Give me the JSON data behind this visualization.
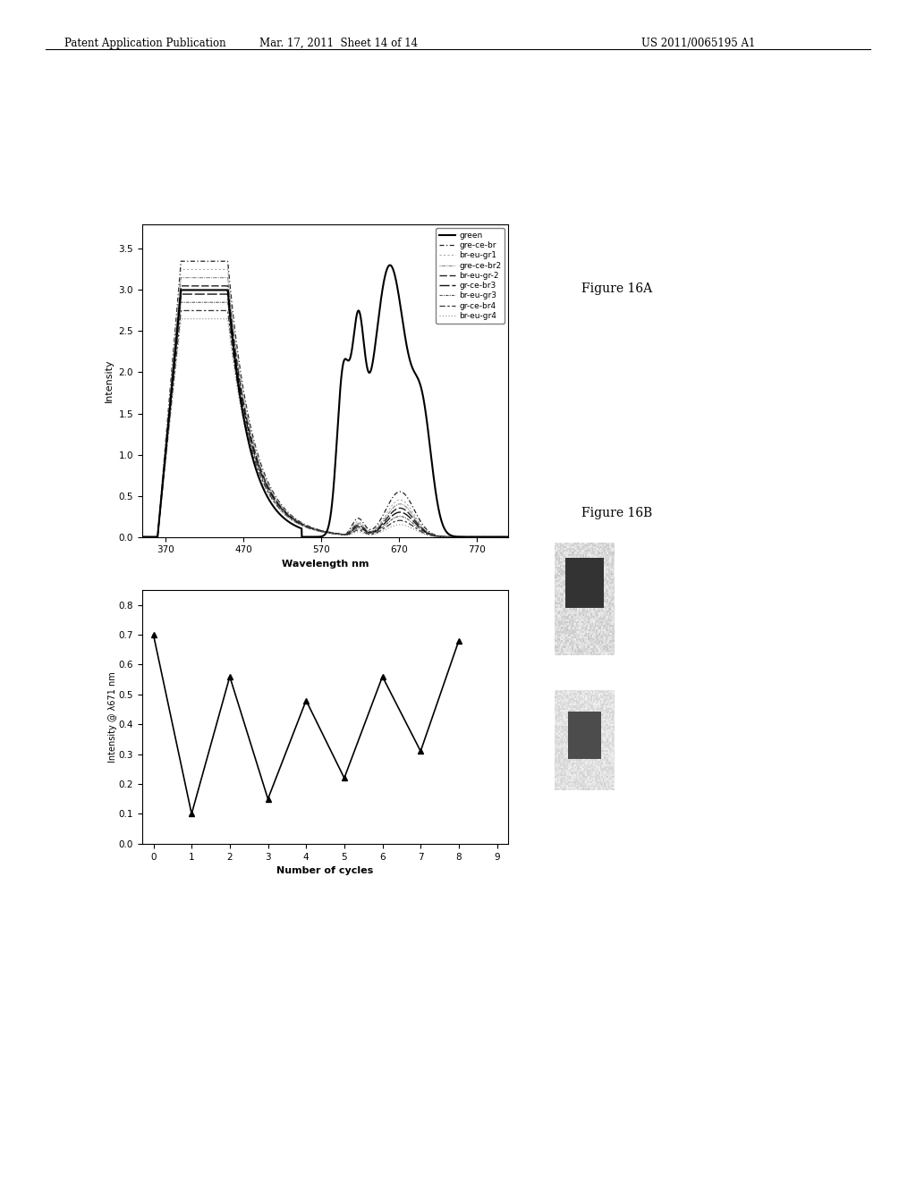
{
  "header_left": "Patent Application Publication",
  "header_mid": "Mar. 17, 2011  Sheet 14 of 14",
  "header_right": "US 2011/0065195 A1",
  "fig16a_label": "Figure 16A",
  "fig16b_label": "Figure 16B",
  "fig16a": {
    "xlabel": "Wavelength nm",
    "ylabel": "Intensity",
    "xlim": [
      340,
      810
    ],
    "ylim": [
      0,
      3.8
    ],
    "xticks": [
      370,
      470,
      570,
      670,
      770
    ],
    "yticks": [
      0,
      0.5,
      1.0,
      1.5,
      2.0,
      2.5,
      3.0,
      3.5
    ],
    "legend": [
      "green",
      "gre-ce-br",
      "br-eu-gr1",
      "gre-ce-br2",
      "br-eu-gr-2",
      "gr-ce-br3",
      "br-eu-gr3",
      "gr-ce-br4",
      "br-eu-gr4"
    ]
  },
  "fig16b": {
    "xlabel": "Number of cycles",
    "ylabel": "Intensity @ λ671 nm",
    "xlim": [
      -0.3,
      9.3
    ],
    "ylim": [
      0,
      0.85
    ],
    "xticks": [
      0,
      1,
      2,
      3,
      4,
      5,
      6,
      7,
      8,
      9
    ],
    "yticks": [
      0,
      0.1,
      0.2,
      0.3,
      0.4,
      0.5,
      0.6,
      0.7,
      0.8
    ],
    "x": [
      0,
      1,
      2,
      3,
      4,
      5,
      6,
      7,
      8
    ],
    "y": [
      0.7,
      0.1,
      0.56,
      0.15,
      0.48,
      0.22,
      0.56,
      0.31,
      0.68
    ]
  },
  "background_color": "#ffffff",
  "text_color": "#000000"
}
